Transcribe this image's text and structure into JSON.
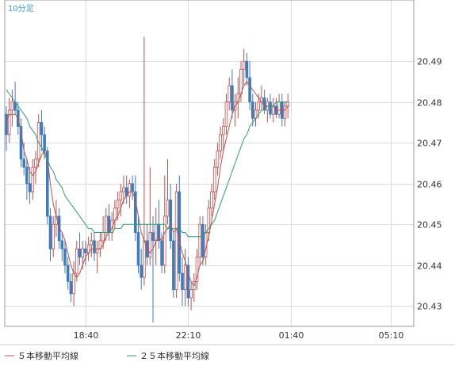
{
  "interval_label": "10分足",
  "legend": [
    {
      "label": "５本移動平均線",
      "color": "#c0504d"
    },
    {
      "label": "２５本移動平均線",
      "color": "#2e9e6e"
    }
  ],
  "colors": {
    "up": "#c0504d",
    "down": "#3d7cc0",
    "grid": "#dddddd",
    "frame": "#999999",
    "interval": "#3c9ad0"
  },
  "chart_data": {
    "type": "candlestick",
    "ylim": [
      20.425,
      20.505
    ],
    "yticks": [
      20.43,
      20.44,
      20.45,
      20.46,
      20.47,
      20.48,
      20.49
    ],
    "xticks": [
      {
        "label": "18:40",
        "index": 27
      },
      {
        "label": "22:10",
        "index": 62
      },
      {
        "label": "01:40",
        "index": 97
      },
      {
        "label": "05:10",
        "index": 131
      }
    ],
    "grid": true,
    "candles": [
      [
        20.477,
        20.479,
        20.468,
        20.472
      ],
      [
        20.472,
        20.481,
        20.47,
        20.478
      ],
      [
        20.478,
        20.483,
        20.474,
        20.48
      ],
      [
        20.48,
        20.485,
        20.477,
        20.478
      ],
      [
        20.478,
        20.48,
        20.472,
        20.474
      ],
      [
        20.474,
        20.476,
        20.464,
        20.466
      ],
      [
        20.466,
        20.47,
        20.462,
        20.464
      ],
      [
        20.464,
        20.466,
        20.456,
        20.46
      ],
      [
        20.46,
        20.464,
        20.455,
        20.458
      ],
      [
        20.458,
        20.466,
        20.456,
        20.464
      ],
      [
        20.464,
        20.468,
        20.46,
        20.466
      ],
      [
        20.466,
        20.477,
        20.464,
        20.475
      ],
      [
        20.475,
        20.478,
        20.468,
        20.472
      ],
      [
        20.472,
        20.474,
        20.466,
        20.468
      ],
      [
        20.468,
        20.469,
        20.45,
        20.452
      ],
      [
        20.452,
        20.454,
        20.441,
        20.444
      ],
      [
        20.444,
        20.452,
        20.442,
        20.45
      ],
      [
        20.45,
        20.456,
        20.447,
        20.452
      ],
      [
        20.452,
        20.454,
        20.444,
        20.446
      ],
      [
        20.446,
        20.448,
        20.441,
        20.444
      ],
      [
        20.444,
        20.446,
        20.438,
        20.44
      ],
      [
        20.44,
        20.442,
        20.434,
        20.436
      ],
      [
        20.436,
        20.438,
        20.431,
        20.433
      ],
      [
        20.433,
        20.441,
        20.43,
        20.438
      ],
      [
        20.438,
        20.446,
        20.436,
        20.444
      ],
      [
        20.444,
        20.448,
        20.44,
        20.442
      ],
      [
        20.442,
        20.446,
        20.439,
        20.444
      ],
      [
        20.444,
        20.446,
        20.44,
        20.443
      ],
      [
        20.443,
        20.447,
        20.441,
        20.445
      ],
      [
        20.445,
        20.448,
        20.442,
        20.446
      ],
      [
        20.446,
        20.448,
        20.441,
        20.443
      ],
      [
        20.443,
        20.446,
        20.438,
        20.444
      ],
      [
        20.444,
        20.448,
        20.442,
        20.446
      ],
      [
        20.446,
        20.452,
        20.444,
        20.448
      ],
      [
        20.448,
        20.454,
        20.446,
        20.452
      ],
      [
        20.452,
        20.455,
        20.446,
        20.448
      ],
      [
        20.448,
        20.453,
        20.446,
        20.451
      ],
      [
        20.451,
        20.456,
        20.449,
        20.454
      ],
      [
        20.454,
        20.458,
        20.451,
        20.456
      ],
      [
        20.456,
        20.46,
        20.452,
        20.458
      ],
      [
        20.458,
        20.462,
        20.455,
        20.459
      ],
      [
        20.459,
        20.462,
        20.455,
        20.457
      ],
      [
        20.457,
        20.461,
        20.454,
        20.46
      ],
      [
        20.46,
        20.462,
        20.456,
        20.458
      ],
      [
        20.458,
        20.462,
        20.446,
        20.448
      ],
      [
        20.448,
        20.452,
        20.438,
        20.44
      ],
      [
        20.44,
        20.444,
        20.434,
        20.437
      ],
      [
        20.437,
        20.496,
        20.435,
        20.446
      ],
      [
        20.446,
        20.45,
        20.44,
        20.442
      ],
      [
        20.442,
        20.464,
        20.44,
        20.448
      ],
      [
        20.448,
        20.452,
        20.426,
        20.446
      ],
      [
        20.446,
        20.454,
        20.44,
        20.45
      ],
      [
        20.45,
        20.456,
        20.444,
        20.446
      ],
      [
        20.446,
        20.448,
        20.438,
        20.44
      ],
      [
        20.44,
        20.462,
        20.438,
        20.452
      ],
      [
        20.452,
        20.466,
        20.45,
        20.456
      ],
      [
        20.456,
        20.46,
        20.444,
        20.446
      ],
      [
        20.446,
        20.448,
        20.432,
        20.434
      ],
      [
        20.434,
        20.46,
        20.432,
        20.458
      ],
      [
        20.458,
        20.462,
        20.436,
        20.438
      ],
      [
        20.438,
        20.442,
        20.43,
        20.434
      ],
      [
        20.434,
        20.444,
        20.43,
        20.44
      ],
      [
        20.44,
        20.442,
        20.43,
        20.432
      ],
      [
        20.432,
        20.436,
        20.429,
        20.434
      ],
      [
        20.434,
        20.438,
        20.431,
        20.436
      ],
      [
        20.436,
        20.444,
        20.434,
        20.442
      ],
      [
        20.442,
        20.452,
        20.44,
        20.45
      ],
      [
        20.45,
        20.452,
        20.44,
        20.442
      ],
      [
        20.442,
        20.45,
        20.44,
        20.448
      ],
      [
        20.448,
        20.456,
        20.446,
        20.454
      ],
      [
        20.454,
        20.46,
        20.452,
        20.458
      ],
      [
        20.458,
        20.466,
        20.456,
        20.464
      ],
      [
        20.464,
        20.47,
        20.462,
        20.468
      ],
      [
        20.468,
        20.474,
        20.466,
        20.472
      ],
      [
        20.472,
        20.476,
        20.468,
        20.474
      ],
      [
        20.474,
        20.482,
        20.472,
        20.48
      ],
      [
        20.48,
        20.486,
        20.478,
        20.484
      ],
      [
        20.484,
        20.488,
        20.476,
        20.478
      ],
      [
        20.478,
        20.482,
        20.474,
        20.48
      ],
      [
        20.48,
        20.486,
        20.476,
        20.482
      ],
      [
        20.482,
        20.49,
        20.48,
        20.488
      ],
      [
        20.488,
        20.493,
        20.484,
        20.49
      ],
      [
        20.49,
        20.492,
        20.484,
        20.486
      ],
      [
        20.486,
        20.49,
        20.478,
        20.48
      ],
      [
        20.48,
        20.482,
        20.474,
        20.476
      ],
      [
        20.476,
        20.48,
        20.474,
        20.478
      ],
      [
        20.478,
        20.482,
        20.476,
        20.48
      ],
      [
        20.48,
        20.484,
        20.478,
        20.481
      ],
      [
        20.481,
        20.483,
        20.477,
        20.478
      ],
      [
        20.478,
        20.481,
        20.475,
        20.48
      ],
      [
        20.48,
        20.482,
        20.476,
        20.477
      ],
      [
        20.477,
        20.481,
        20.475,
        20.479
      ],
      [
        20.479,
        20.481,
        20.476,
        20.477
      ],
      [
        20.477,
        20.482,
        20.476,
        20.48
      ],
      [
        20.48,
        20.482,
        20.474,
        20.476
      ],
      [
        20.476,
        20.48,
        20.474,
        20.479
      ],
      [
        20.479,
        20.482,
        20.476,
        20.48
      ]
    ],
    "ma5": [
      20.475,
      20.477,
      20.477,
      20.477,
      20.476,
      20.473,
      20.468,
      20.466,
      20.463,
      20.462,
      20.463,
      20.465,
      20.467,
      20.468,
      20.466,
      20.46,
      20.455,
      20.452,
      20.449,
      20.448,
      20.446,
      20.443,
      20.44,
      20.438,
      20.437,
      20.438,
      20.44,
      20.442,
      20.443,
      20.444,
      20.444,
      20.444,
      20.444,
      20.445,
      20.447,
      20.448,
      20.449,
      20.451,
      20.452,
      20.454,
      20.456,
      20.457,
      20.458,
      20.458,
      20.456,
      20.452,
      20.448,
      20.446,
      20.444,
      20.443,
      20.444,
      20.446,
      20.447,
      20.446,
      20.448,
      20.449,
      20.45,
      20.448,
      20.449,
      20.446,
      20.443,
      20.441,
      20.438,
      20.436,
      20.435,
      20.437,
      20.44,
      20.441,
      20.444,
      20.447,
      20.451,
      20.455,
      20.459,
      20.464,
      20.468,
      20.471,
      20.474,
      20.477,
      20.479,
      20.48,
      20.482,
      20.484,
      20.485,
      20.484,
      20.483,
      20.482,
      20.481,
      20.48,
      20.479,
      20.479,
      20.479,
      20.479,
      20.478,
      20.478,
      20.478,
      20.478,
      20.479
    ],
    "ma25": [
      20.483,
      20.482,
      20.481,
      20.48,
      20.479,
      20.478,
      20.477,
      20.476,
      20.474,
      20.473,
      20.472,
      20.47,
      20.469,
      20.467,
      20.466,
      20.464,
      20.463,
      20.461,
      20.46,
      20.459,
      20.457,
      20.456,
      20.455,
      20.454,
      20.453,
      20.452,
      20.451,
      20.45,
      20.449,
      20.449,
      20.448,
      20.448,
      20.448,
      20.448,
      20.448,
      20.448,
      20.448,
      20.449,
      20.449,
      20.449,
      20.45,
      20.45,
      20.45,
      20.45,
      20.45,
      20.45,
      20.45,
      20.45,
      20.45,
      20.45,
      20.45,
      20.45,
      20.45,
      20.45,
      20.45,
      20.449,
      20.449,
      20.449,
      20.449,
      20.449,
      20.448,
      20.448,
      20.447,
      20.447,
      20.447,
      20.447,
      20.447,
      20.447,
      20.448,
      20.449,
      20.45,
      20.451,
      20.453,
      20.455,
      20.457,
      20.459,
      20.461,
      20.463,
      20.465,
      20.467,
      20.469,
      20.471,
      20.472,
      20.474,
      20.475,
      20.476,
      20.477,
      20.478,
      20.478,
      20.479,
      20.479,
      20.479,
      20.48,
      20.48,
      20.48,
      20.48,
      20.48
    ]
  }
}
